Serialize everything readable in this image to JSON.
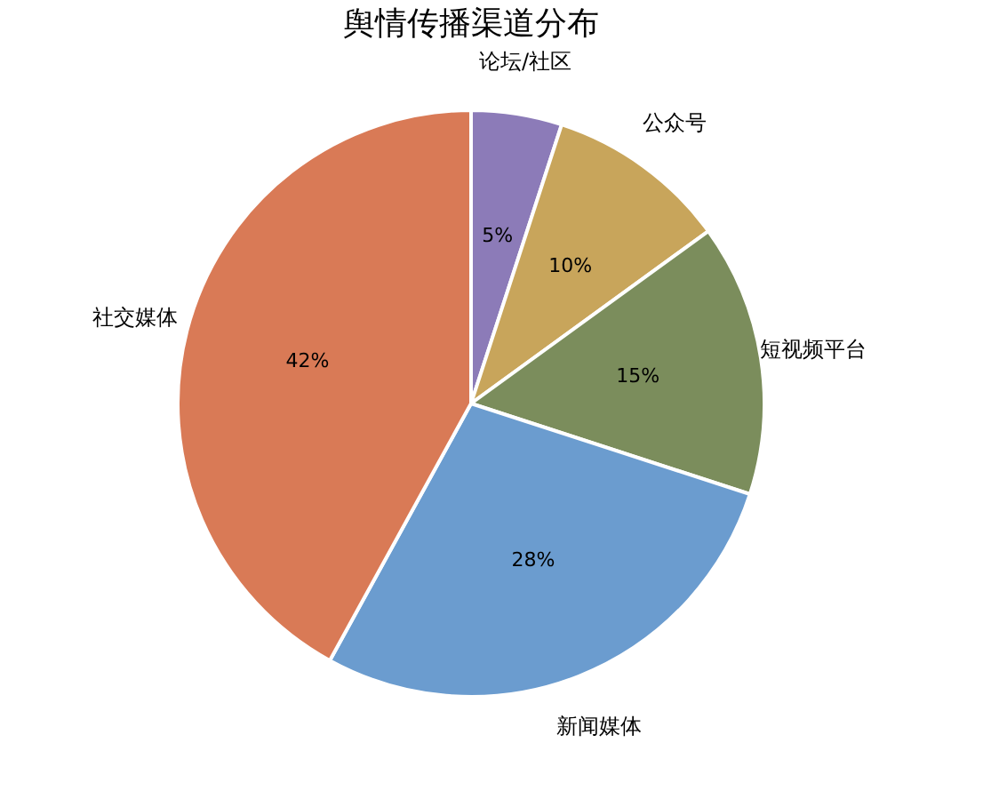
{
  "chart_data": {
    "type": "pie",
    "title": "舆情传播渠道分布",
    "categories": [
      "论坛/社区",
      "公众号",
      "短视频平台",
      "新闻媒体",
      "社交媒体"
    ],
    "values": [
      5,
      10,
      15,
      28,
      42
    ],
    "colors": [
      "#8c7bb8",
      "#c8a55b",
      "#7b8d5c",
      "#6b9ccf",
      "#d97a56"
    ],
    "value_labels": [
      "5%",
      "10%",
      "15%",
      "28%",
      "42%"
    ],
    "legend": false
  }
}
